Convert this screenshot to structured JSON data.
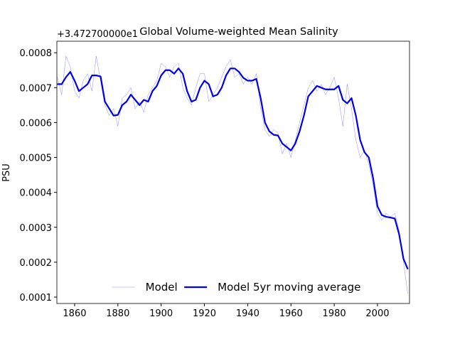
{
  "chart_data": {
    "type": "line",
    "title": "Global Volume-weighted Mean Salinity",
    "ylabel": "PSU",
    "offset_text": "+3.472700000e1",
    "x": [
      1852,
      1854,
      1856,
      1858,
      1860,
      1862,
      1864,
      1866,
      1868,
      1870,
      1872,
      1874,
      1876,
      1878,
      1880,
      1882,
      1884,
      1886,
      1888,
      1890,
      1892,
      1894,
      1896,
      1898,
      1900,
      1902,
      1904,
      1906,
      1908,
      1910,
      1912,
      1914,
      1916,
      1918,
      1920,
      1922,
      1924,
      1926,
      1928,
      1930,
      1932,
      1934,
      1936,
      1938,
      1940,
      1942,
      1944,
      1946,
      1948,
      1950,
      1952,
      1954,
      1956,
      1958,
      1960,
      1962,
      1964,
      1966,
      1968,
      1970,
      1972,
      1974,
      1976,
      1978,
      1980,
      1982,
      1984,
      1986,
      1988,
      1990,
      1992,
      1994,
      1996,
      1998,
      2000,
      2002,
      2004,
      2006,
      2008,
      2010,
      2012,
      2014
    ],
    "series": [
      {
        "name": "Model",
        "color": "#0000ff",
        "width": 0.5,
        "opacity": 0.45,
        "values": [
          0.00073,
          0.00068,
          0.00079,
          0.00076,
          0.00069,
          0.00067,
          0.00072,
          0.00074,
          0.00069,
          0.00079,
          0.00072,
          0.00065,
          0.00062,
          0.00064,
          0.00059,
          0.00067,
          0.00068,
          0.0007,
          0.00064,
          0.00066,
          0.00063,
          0.00068,
          0.0007,
          0.00072,
          0.00077,
          0.00076,
          0.00073,
          0.00076,
          0.00077,
          0.0007,
          0.00067,
          0.00065,
          0.0007,
          0.00074,
          0.00074,
          0.00066,
          0.00068,
          0.0007,
          0.00073,
          0.00076,
          0.00078,
          0.00073,
          0.00074,
          0.00071,
          0.00073,
          0.00071,
          0.00074,
          0.00064,
          0.00058,
          0.00056,
          0.00058,
          0.00057,
          0.00051,
          0.00054,
          0.0005,
          0.00055,
          0.0006,
          0.00065,
          0.0007,
          0.00072,
          0.00069,
          0.00071,
          0.00068,
          0.0007,
          0.00073,
          0.00067,
          0.00059,
          0.00071,
          0.00064,
          0.00055,
          0.0005,
          0.00052,
          0.00048,
          0.00042,
          0.00034,
          0.00032,
          0.00034,
          0.00033,
          0.00034,
          0.00029,
          0.0002,
          0.00011
        ]
      },
      {
        "name": "Model 5yr moving average",
        "color": "#0000ee",
        "width": 2.2,
        "opacity": 1,
        "values": [
          0.00071,
          0.00071,
          0.00073,
          0.000745,
          0.00072,
          0.00069,
          0.0007,
          0.00071,
          0.000735,
          0.000735,
          0.000732,
          0.00066,
          0.00064,
          0.00062,
          0.000622,
          0.00065,
          0.00066,
          0.00068,
          0.000665,
          0.00065,
          0.000665,
          0.00066,
          0.00069,
          0.000705,
          0.000735,
          0.00075,
          0.00075,
          0.00074,
          0.000755,
          0.00074,
          0.00069,
          0.00066,
          0.000665,
          0.0007,
          0.00072,
          0.00071,
          0.000675,
          0.00068,
          0.0007,
          0.000735,
          0.000755,
          0.000755,
          0.000745,
          0.000728,
          0.00072,
          0.00072,
          0.000725,
          0.00067,
          0.0006,
          0.000575,
          0.000565,
          0.000563,
          0.00054,
          0.00053,
          0.00052,
          0.00054,
          0.000575,
          0.00062,
          0.000675,
          0.00069,
          0.000705,
          0.0007,
          0.000695,
          0.000695,
          0.000695,
          0.000705,
          0.000665,
          0.000655,
          0.00067,
          0.00062,
          0.00055,
          0.000515,
          0.0005,
          0.00044,
          0.00036,
          0.000335,
          0.00033,
          0.000328,
          0.000325,
          0.00028,
          0.00021,
          0.00018
        ]
      }
    ],
    "xlim": [
      1851.8,
      2014.8
    ],
    "ylim": [
      8.17e-05,
      0.000833
    ],
    "xticks": [
      1860,
      1880,
      1900,
      1920,
      1940,
      1960,
      1980,
      2000
    ],
    "yticks": [
      0.0001,
      0.0002,
      0.0003,
      0.0004,
      0.0005,
      0.0006,
      0.0007,
      0.0008
    ],
    "legend": "lower center"
  }
}
